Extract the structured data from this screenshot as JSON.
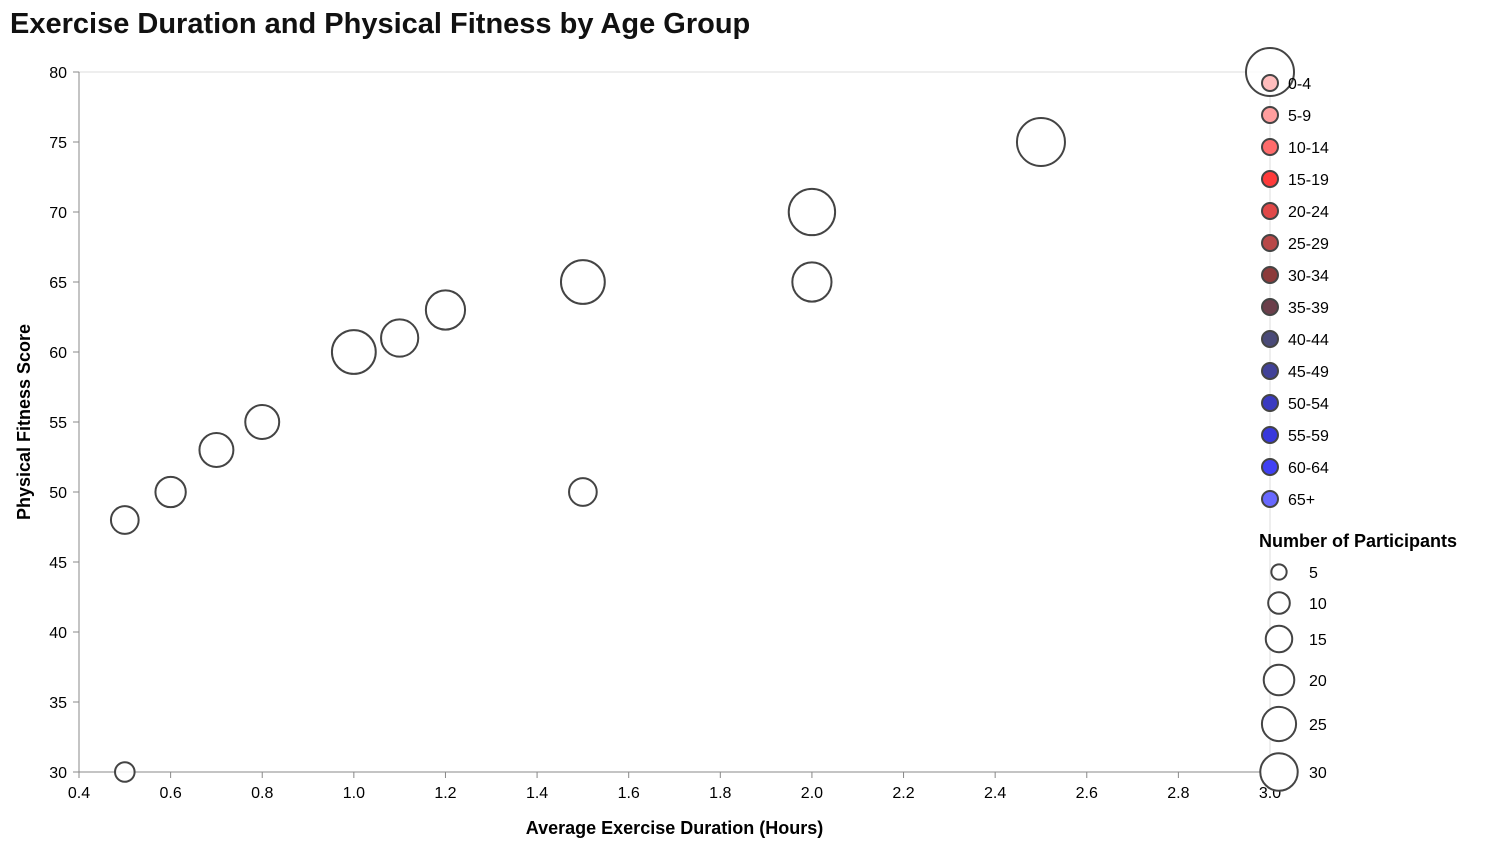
{
  "chart_data": {
    "type": "scatter",
    "title": "Exercise Duration and Physical Fitness by Age Group",
    "xlabel": "Average Exercise Duration (Hours)",
    "ylabel": "Physical Fitness Score",
    "xlim": [
      0.4,
      3.0
    ],
    "ylim": [
      30,
      80
    ],
    "x_ticks": [
      0.4,
      0.6,
      0.8,
      1.0,
      1.2,
      1.4,
      1.6,
      1.8,
      2.0,
      2.2,
      2.4,
      2.6,
      2.8,
      3.0
    ],
    "y_ticks": [
      30,
      35,
      40,
      45,
      50,
      55,
      60,
      65,
      70,
      75,
      80
    ],
    "grid": false,
    "legend_position": "right",
    "color_legend": {
      "categories": [
        "0-4",
        "5-9",
        "10-14",
        "15-19",
        "20-24",
        "25-29",
        "30-34",
        "35-39",
        "40-44",
        "45-49",
        "50-54",
        "55-59",
        "60-64",
        "65+"
      ],
      "colors": [
        "#ffbdbd",
        "#ff9e9e",
        "#ff6b6b",
        "#ff3b3b",
        "#e04848",
        "#b84848",
        "#8c3a3a",
        "#6b3e4a",
        "#4a4a78",
        "#414198",
        "#3a3ac0",
        "#3838dc",
        "#4040f4",
        "#6868ff"
      ]
    },
    "size_legend": {
      "title": "Number of Participants",
      "values": [
        5,
        10,
        15,
        20,
        25,
        30
      ]
    },
    "points": [
      {
        "age_group": "0-4",
        "x": 0.5,
        "y": 30,
        "participants": 5
      },
      {
        "age_group": "5-9",
        "x": 0.5,
        "y": 48,
        "participants": 10
      },
      {
        "age_group": "10-14",
        "x": 0.6,
        "y": 50,
        "participants": 12
      },
      {
        "age_group": "15-19",
        "x": 0.7,
        "y": 53,
        "participants": 15
      },
      {
        "age_group": "20-24",
        "x": 0.8,
        "y": 55,
        "participants": 15
      },
      {
        "age_group": "25-29",
        "x": 1.0,
        "y": 60,
        "participants": 25
      },
      {
        "age_group": "30-34",
        "x": 1.1,
        "y": 61,
        "participants": 18
      },
      {
        "age_group": "35-39",
        "x": 1.2,
        "y": 63,
        "participants": 20
      },
      {
        "age_group": "40-44",
        "x": 1.5,
        "y": 65,
        "participants": 25
      },
      {
        "age_group": "45-49",
        "x": 2.0,
        "y": 70,
        "participants": 28
      },
      {
        "age_group": "50-54",
        "x": 2.5,
        "y": 75,
        "participants": 30
      },
      {
        "age_group": "55-59",
        "x": 3.0,
        "y": 80,
        "participants": 30
      },
      {
        "age_group": "60-64",
        "x": 2.0,
        "y": 65,
        "participants": 20
      },
      {
        "age_group": "65+",
        "x": 1.5,
        "y": 50,
        "participants": 10
      }
    ]
  }
}
